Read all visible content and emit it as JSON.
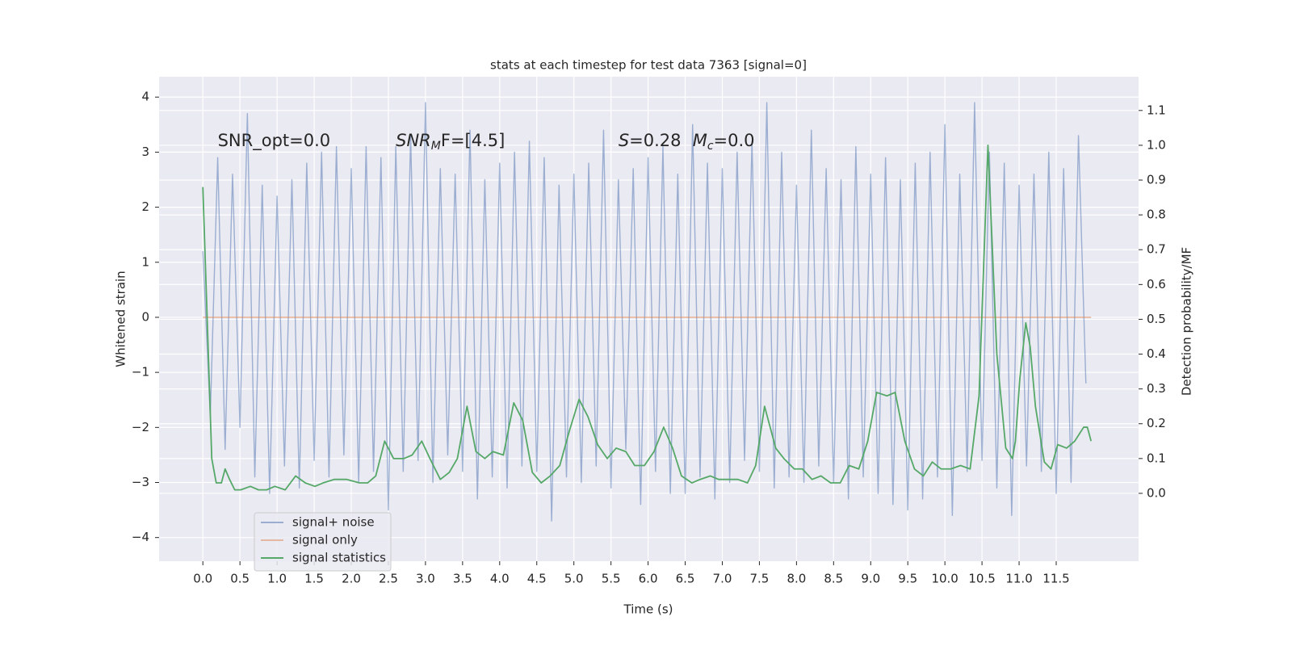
{
  "chart_data": {
    "type": "line",
    "title": "stats at each timestep for test data 7363 [signal=0]",
    "x_label": "Time (s)",
    "y_label": "Whitened strain",
    "y2_label": "Detection probability/MF",
    "xlim": [
      -0.59,
      12.61
    ],
    "ylim": [
      -4.43,
      4.37
    ],
    "y2lim": [
      -0.195,
      1.197
    ],
    "grid": true,
    "legend": "lower left",
    "xticks": [
      {
        "value": 0,
        "label": "0.0"
      },
      0.5,
      {
        "value": 1,
        "label": "1.0"
      },
      1.5,
      {
        "value": 2,
        "label": "2.0"
      },
      2.5,
      {
        "value": 3,
        "label": "3.0"
      },
      3.5,
      {
        "value": 4,
        "label": "4.0"
      },
      4.5,
      {
        "value": 5,
        "label": "5.0"
      },
      5.5,
      {
        "value": 6,
        "label": "6.0"
      },
      6.5,
      {
        "value": 7,
        "label": "7.0"
      },
      7.5,
      {
        "value": 8,
        "label": "8.0"
      },
      8.5,
      {
        "value": 9,
        "label": "9.0"
      },
      9.5,
      {
        "value": 10,
        "label": "10.0"
      },
      10.5,
      {
        "value": 11,
        "label": "11.0"
      },
      11.5
    ],
    "yticks": [
      {
        "value": -4,
        "label": "−4"
      },
      {
        "value": -3,
        "label": "−3"
      },
      {
        "value": -2,
        "label": "−2"
      },
      {
        "value": -1,
        "label": "−1"
      },
      0,
      1,
      2,
      3,
      4
    ],
    "y2ticks": [
      {
        "value": 0,
        "label": "0.0"
      },
      0.1,
      0.2,
      0.3,
      0.4,
      0.5,
      0.6,
      0.7,
      0.8,
      0.9,
      {
        "value": 1,
        "label": "1.0"
      },
      1.1
    ],
    "annotations": [
      {
        "base": "SNR_opt=0.0",
        "x": 0.2,
        "y": 3.2
      },
      {
        "base": "SNR",
        "sub": "M",
        "rest": "F=[4.5]",
        "x": 2.6,
        "y": 3.2,
        "italic": true
      },
      {
        "base": "S",
        "rest": "=0.28",
        "x": 5.6,
        "y": 3.2,
        "italic": true
      },
      {
        "base": "M",
        "sub": "c",
        "rest": "=0.0",
        "x": 6.6,
        "y": 3.2,
        "italic": true
      }
    ],
    "series": [
      {
        "name": "signal+ noise",
        "color": "#4c72b0",
        "opacity": 0.5,
        "x": [
          0,
          0.1,
          0.2,
          0.3,
          0.4,
          0.5,
          0.6,
          0.7,
          0.8,
          0.9,
          1,
          1.1,
          1.2,
          1.3,
          1.4,
          1.5,
          1.6,
          1.7,
          1.8,
          1.9,
          2,
          2.1,
          2.2,
          2.3,
          2.4,
          2.5,
          2.6,
          2.7,
          2.8,
          2.9,
          3,
          3.1,
          3.2,
          3.3,
          3.4,
          3.5,
          3.6,
          3.7,
          3.8,
          3.9,
          4,
          4.1,
          4.2,
          4.3,
          4.4,
          4.5,
          4.6,
          4.7,
          4.8,
          4.9,
          5,
          5.1,
          5.2,
          5.3,
          5.4,
          5.5,
          5.6,
          5.7,
          5.8,
          5.9,
          6,
          6.1,
          6.2,
          6.3,
          6.4,
          6.5,
          6.6,
          6.7,
          6.8,
          6.9,
          7,
          7.1,
          7.2,
          7.3,
          7.4,
          7.5,
          7.6,
          7.7,
          7.8,
          7.9,
          8,
          8.1,
          8.2,
          8.3,
          8.4,
          8.5,
          8.6,
          8.7,
          8.8,
          8.9,
          9,
          9.1,
          9.2,
          9.3,
          9.4,
          9.5,
          9.6,
          9.7,
          9.8,
          9.9,
          10,
          10.1,
          10.2,
          10.3,
          10.4,
          10.5,
          10.6,
          10.7,
          10.8,
          10.9,
          11,
          11.1,
          11.2,
          11.3,
          11.4,
          11.5,
          11.6,
          11.7,
          11.8,
          11.9
        ],
        "values": [
          1.2,
          -1.8,
          2.9,
          -2.4,
          2.6,
          -2.0,
          3.7,
          -2.9,
          2.4,
          -3.2,
          2.2,
          -2.7,
          2.5,
          -3.1,
          2.8,
          -2.6,
          3.0,
          -2.9,
          3.1,
          -2.5,
          2.7,
          -3.0,
          3.1,
          -2.8,
          2.9,
          -3.5,
          3.1,
          -2.8,
          3.3,
          -2.6,
          3.9,
          -3.0,
          2.7,
          -2.5,
          2.6,
          -2.8,
          3.4,
          -3.3,
          2.5,
          -2.9,
          2.8,
          -3.1,
          3.0,
          -2.7,
          3.2,
          -2.8,
          2.9,
          -3.7,
          2.4,
          -2.9,
          2.6,
          -3.0,
          2.8,
          -2.7,
          3.4,
          -3.1,
          2.5,
          -2.4,
          2.7,
          -3.4,
          2.9,
          -2.8,
          3.1,
          -3.2,
          2.6,
          -3.2,
          3.5,
          -2.9,
          2.8,
          -3.3,
          2.7,
          -3.0,
          3.0,
          -2.6,
          3.2,
          -2.8,
          3.9,
          -3.1,
          3.0,
          -2.9,
          2.4,
          -3.0,
          3.4,
          -2.7,
          2.7,
          -3.0,
          2.5,
          -3.3,
          3.1,
          -2.9,
          2.6,
          -3.2,
          2.9,
          -3.4,
          2.5,
          -3.5,
          2.8,
          -3.3,
          3.0,
          -2.9,
          3.5,
          -3.6,
          2.6,
          -2.8,
          3.9,
          -2.6,
          3.0,
          -3.1,
          2.8,
          -3.6,
          2.4,
          -2.7,
          2.6,
          -2.8,
          3.0,
          -3.2,
          2.7,
          -3.0,
          3.3,
          -1.2
        ]
      },
      {
        "name": "signal only",
        "color": "#dd8452",
        "opacity": 0.5,
        "x": [
          0,
          11.97
        ],
        "values": [
          0,
          0
        ]
      },
      {
        "name": "signal statistics",
        "color": "#55a868",
        "opacity": 1,
        "axis": "y2",
        "x": [
          0,
          0.12,
          0.18,
          0.25,
          0.3,
          0.36,
          0.43,
          0.51,
          0.64,
          0.75,
          0.86,
          0.97,
          1.11,
          1.25,
          1.38,
          1.51,
          1.62,
          1.77,
          1.94,
          2.11,
          2.22,
          2.33,
          2.45,
          2.57,
          2.71,
          2.82,
          2.95,
          3.06,
          3.2,
          3.32,
          3.43,
          3.56,
          3.68,
          3.8,
          3.91,
          4.05,
          4.19,
          4.31,
          4.44,
          4.56,
          4.68,
          4.81,
          4.94,
          5.07,
          5.19,
          5.32,
          5.45,
          5.57,
          5.7,
          5.82,
          5.95,
          6.08,
          6.21,
          6.33,
          6.45,
          6.59,
          6.7,
          6.84,
          6.95,
          7.09,
          7.21,
          7.34,
          7.45,
          7.57,
          7.72,
          7.83,
          7.97,
          8.08,
          8.21,
          8.33,
          8.46,
          8.59,
          8.71,
          8.84,
          8.96,
          9.08,
          9.22,
          9.33,
          9.46,
          9.59,
          9.71,
          9.83,
          9.95,
          10.08,
          10.21,
          10.34,
          10.46,
          10.58,
          10.7,
          10.82,
          10.91,
          10.95,
          11.01,
          11.09,
          11.15,
          11.22,
          11.34,
          11.43,
          11.52,
          11.64,
          11.75,
          11.87,
          11.92,
          11.97
        ],
        "values": [
          0.88,
          0.1,
          0.03,
          0.03,
          0.07,
          0.04,
          0.01,
          0.01,
          0.02,
          0.01,
          0.01,
          0.02,
          0.01,
          0.05,
          0.03,
          0.02,
          0.03,
          0.04,
          0.04,
          0.03,
          0.03,
          0.05,
          0.15,
          0.1,
          0.1,
          0.11,
          0.15,
          0.1,
          0.04,
          0.06,
          0.1,
          0.25,
          0.12,
          0.1,
          0.12,
          0.11,
          0.26,
          0.21,
          0.06,
          0.03,
          0.05,
          0.08,
          0.18,
          0.27,
          0.22,
          0.14,
          0.1,
          0.13,
          0.12,
          0.08,
          0.08,
          0.12,
          0.19,
          0.13,
          0.05,
          0.03,
          0.04,
          0.05,
          0.04,
          0.04,
          0.04,
          0.03,
          0.08,
          0.25,
          0.13,
          0.1,
          0.07,
          0.07,
          0.04,
          0.05,
          0.03,
          0.03,
          0.08,
          0.07,
          0.15,
          0.29,
          0.28,
          0.29,
          0.15,
          0.07,
          0.05,
          0.09,
          0.07,
          0.07,
          0.08,
          0.07,
          0.28,
          1.0,
          0.4,
          0.13,
          0.1,
          0.15,
          0.33,
          0.49,
          0.42,
          0.25,
          0.09,
          0.07,
          0.14,
          0.13,
          0.15,
          0.19,
          0.19,
          0.15
        ]
      }
    ]
  }
}
